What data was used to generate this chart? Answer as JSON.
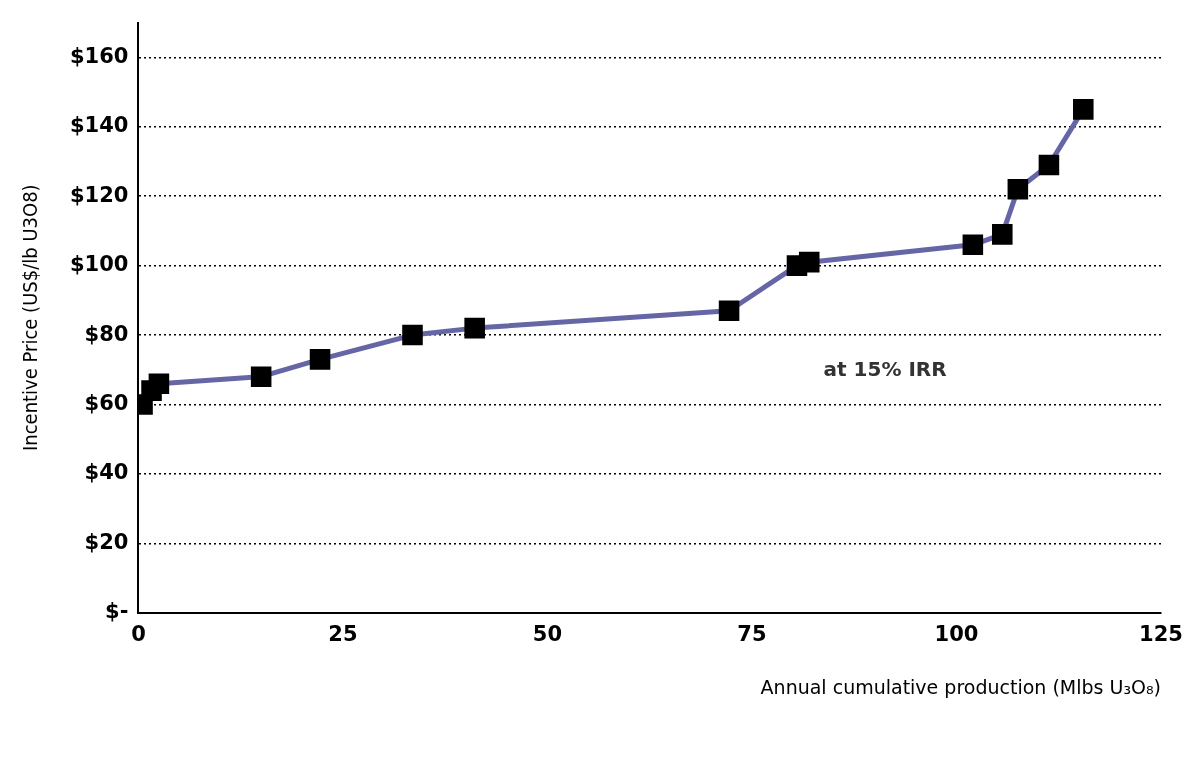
{
  "chart_data": {
    "type": "line",
    "xlabel": "Annual cumulative production (Mlbs U₃O₈)",
    "ylabel": "Incentive Price (US$/lb U3O8)",
    "annotations": [
      "at 15% IRR"
    ],
    "x": [
      0.5,
      1.6,
      2.5,
      15,
      22.2,
      33.5,
      41.1,
      72.2,
      80.5,
      82,
      102,
      105.6,
      107.5,
      111.3,
      115.5
    ],
    "series": [
      {
        "color": "#6666a6",
        "values": [
          60,
          64,
          66,
          68,
          73,
          80,
          82,
          87,
          100,
          101,
          106,
          109,
          122,
          129,
          145
        ]
      }
    ],
    "xlim": [
      0,
      125
    ],
    "xticks": [
      0,
      25,
      50,
      75,
      100,
      125
    ],
    "ylim": [
      0,
      170
    ],
    "yticks": [
      {
        "value": 0,
        "label": "$-"
      },
      {
        "value": 20,
        "label": "$20"
      },
      {
        "value": 40,
        "label": "$40"
      },
      {
        "value": 60,
        "label": "$60"
      },
      {
        "value": 80,
        "label": "$80"
      },
      {
        "value": 100,
        "label": "$100"
      },
      {
        "value": 120,
        "label": "$120"
      },
      {
        "value": 140,
        "label": "$140"
      },
      {
        "value": 160,
        "label": "$160"
      }
    ],
    "grid": "y",
    "legend": false,
    "marker": "square",
    "line_style": "solid"
  }
}
